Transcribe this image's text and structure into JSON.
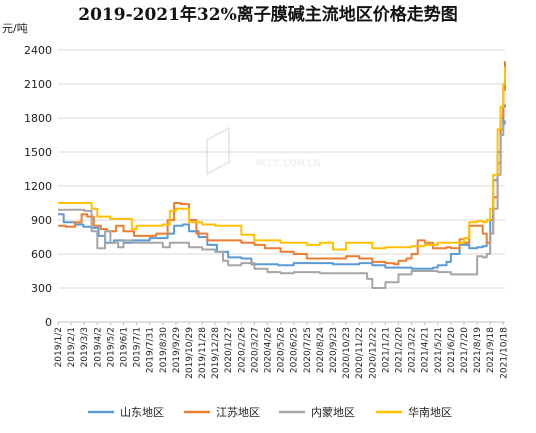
{
  "chart_data": {
    "type": "line",
    "title": "2019-2021年32%离子膜碱主流地区价格走势图",
    "ylabel": "元/吨",
    "ylim": [
      0,
      2400
    ],
    "yticks": [
      0,
      300,
      600,
      900,
      1200,
      1500,
      1800,
      2100,
      2400
    ],
    "grid": true,
    "legend_position": "bottom",
    "x_tick_labels": [
      "2019/1/2",
      "2019/2/1",
      "2019/3/3",
      "2019/4/2",
      "2019/5/2",
      "2019/6/1",
      "2019/7/1",
      "2019/7/31",
      "2019/8/30",
      "2019/9/29",
      "2019/10/29",
      "2019/11/28",
      "2019/12/28",
      "2020/1/27",
      "2020/2/26",
      "2020/3/27",
      "2020/4/26",
      "2020/5/26",
      "2020/6/25",
      "2020/7/25",
      "2020/8/24",
      "2020/9/23",
      "2020/10/23",
      "2020/11/22",
      "2020/12/22",
      "2021/1/21",
      "2021/2/20",
      "2021/3/22",
      "2021/4/21",
      "2021/5/21",
      "2021/6/20",
      "2021/7/20",
      "2021/8/19",
      "2021/9/18",
      "2021/10/18"
    ],
    "series": [
      {
        "name": "山东地区",
        "color": "#5b9bd5",
        "x": [
          "2019/1/2",
          "2019/1/15",
          "2019/2/10",
          "2019/3/1",
          "2019/3/20",
          "2019/4/5",
          "2019/4/20",
          "2019/5/10",
          "2019/6/1",
          "2019/6/20",
          "2019/7/10",
          "2019/7/31",
          "2019/8/20",
          "2019/9/10",
          "2019/9/25",
          "2019/10/15",
          "2019/10/29",
          "2019/11/20",
          "2019/12/10",
          "2020/1/1",
          "2020/1/27",
          "2020/2/26",
          "2020/3/20",
          "2020/4/20",
          "2020/5/20",
          "2020/6/25",
          "2020/7/25",
          "2020/8/24",
          "2020/9/23",
          "2020/10/23",
          "2020/11/22",
          "2020/12/22",
          "2021/1/21",
          "2021/2/20",
          "2021/3/22",
          "2021/4/21",
          "2021/5/10",
          "2021/5/21",
          "2021/6/10",
          "2021/6/20",
          "2021/7/10",
          "2021/7/20",
          "2021/8/1",
          "2021/8/19",
          "2021/9/1",
          "2021/9/10",
          "2021/9/18",
          "2021/9/25",
          "2021/10/5",
          "2021/10/12",
          "2021/10/18",
          "2021/10/22"
        ],
        "y": [
          950,
          880,
          860,
          840,
          830,
          760,
          700,
          720,
          700,
          720,
          720,
          740,
          740,
          780,
          850,
          860,
          800,
          750,
          680,
          620,
          570,
          560,
          510,
          510,
          500,
          520,
          520,
          520,
          510,
          510,
          520,
          500,
          480,
          480,
          470,
          470,
          480,
          500,
          530,
          600,
          680,
          680,
          650,
          660,
          670,
          700,
          900,
          1250,
          1500,
          1700,
          1900,
          1920
        ]
      },
      {
        "name": "江苏地区",
        "color": "#ed7d31",
        "x": [
          "2019/1/2",
          "2019/1/20",
          "2019/2/10",
          "2019/2/25",
          "2019/3/10",
          "2019/3/25",
          "2019/4/10",
          "2019/4/25",
          "2019/5/15",
          "2019/6/1",
          "2019/6/25",
          "2019/7/20",
          "2019/8/15",
          "2019/9/10",
          "2019/9/25",
          "2019/10/10",
          "2019/10/29",
          "2019/11/15",
          "2019/12/10",
          "2020/1/1",
          "2020/1/27",
          "2020/2/26",
          "2020/3/27",
          "2020/4/20",
          "2020/5/26",
          "2020/6/25",
          "2020/7/25",
          "2020/8/24",
          "2020/9/23",
          "2020/10/23",
          "2020/11/22",
          "2020/12/22",
          "2021/1/21",
          "2021/2/10",
          "2021/2/20",
          "2021/3/10",
          "2021/3/22",
          "2021/4/5",
          "2021/4/21",
          "2021/5/10",
          "2021/5/21",
          "2021/6/10",
          "2021/6/20",
          "2021/7/10",
          "2021/7/20",
          "2021/8/1",
          "2021/8/19",
          "2021/9/1",
          "2021/9/10",
          "2021/9/18",
          "2021/9/25",
          "2021/10/5",
          "2021/10/12",
          "2021/10/18",
          "2021/10/22"
        ],
        "y": [
          850,
          840,
          880,
          950,
          930,
          850,
          820,
          800,
          850,
          800,
          760,
          760,
          780,
          900,
          1050,
          1040,
          900,
          780,
          720,
          720,
          720,
          700,
          680,
          650,
          620,
          600,
          560,
          560,
          560,
          580,
          560,
          530,
          520,
          510,
          540,
          560,
          600,
          720,
          700,
          650,
          650,
          660,
          650,
          730,
          700,
          850,
          850,
          780,
          700,
          780,
          1100,
          1400,
          1800,
          2050,
          2300
        ]
      },
      {
        "name": "内蒙地区",
        "color": "#a5a5a5",
        "x": [
          "2019/1/2",
          "2019/2/1",
          "2019/3/3",
          "2019/3/20",
          "2019/4/2",
          "2019/4/20",
          "2019/5/2",
          "2019/5/20",
          "2019/6/1",
          "2019/6/20",
          "2019/7/1",
          "2019/7/31",
          "2019/8/30",
          "2019/9/15",
          "2019/9/29",
          "2019/10/29",
          "2019/11/28",
          "2019/12/28",
          "2020/1/15",
          "2020/1/27",
          "2020/2/26",
          "2020/3/27",
          "2020/4/26",
          "2020/5/26",
          "2020/6/25",
          "2020/7/25",
          "2020/8/24",
          "2020/9/23",
          "2020/10/23",
          "2020/11/22",
          "2020/12/10",
          "2020/12/22",
          "2021/1/5",
          "2021/1/21",
          "2021/2/20",
          "2021/3/22",
          "2021/4/21",
          "2021/5/21",
          "2021/6/20",
          "2021/7/20",
          "2021/8/19",
          "2021/9/1",
          "2021/9/10",
          "2021/9/18",
          "2021/9/25",
          "2021/10/5",
          "2021/10/12",
          "2021/10/18",
          "2021/10/22"
        ],
        "y": [
          990,
          990,
          980,
          800,
          650,
          800,
          700,
          660,
          720,
          700,
          700,
          700,
          660,
          700,
          700,
          660,
          640,
          620,
          540,
          500,
          520,
          470,
          440,
          430,
          440,
          440,
          430,
          430,
          430,
          430,
          380,
          300,
          300,
          350,
          420,
          450,
          450,
          440,
          420,
          420,
          580,
          570,
          600,
          780,
          1000,
          1300,
          1650,
          1750,
          1780
        ]
      },
      {
        "name": "华南地区",
        "color": "#ffc000",
        "x": [
          "2019/1/2",
          "2019/3/3",
          "2019/3/20",
          "2019/4/2",
          "2019/5/2",
          "2019/6/1",
          "2019/6/20",
          "2019/7/1",
          "2019/7/31",
          "2019/8/30",
          "2019/9/15",
          "2019/9/29",
          "2019/10/29",
          "2019/11/28",
          "2019/12/28",
          "2020/1/27",
          "2020/2/26",
          "2020/3/27",
          "2020/4/26",
          "2020/5/26",
          "2020/6/25",
          "2020/7/25",
          "2020/8/24",
          "2020/9/23",
          "2020/10/23",
          "2020/11/22",
          "2020/12/22",
          "2021/1/21",
          "2021/2/20",
          "2021/3/22",
          "2021/4/21",
          "2021/5/21",
          "2021/6/20",
          "2021/7/20",
          "2021/8/1",
          "2021/8/19",
          "2021/9/1",
          "2021/9/10",
          "2021/9/18",
          "2021/9/25",
          "2021/10/5",
          "2021/10/12",
          "2021/10/18",
          "2021/10/22"
        ],
        "y": [
          1050,
          1050,
          1000,
          930,
          910,
          910,
          820,
          850,
          850,
          860,
          980,
          1000,
          880,
          860,
          850,
          850,
          770,
          720,
          720,
          700,
          700,
          680,
          700,
          640,
          700,
          700,
          650,
          660,
          660,
          670,
          680,
          700,
          700,
          740,
          880,
          890,
          880,
          900,
          1000,
          1300,
          1700,
          1900,
          2100,
          2250
        ]
      }
    ]
  },
  "watermark": "BCCC.COM.CN"
}
